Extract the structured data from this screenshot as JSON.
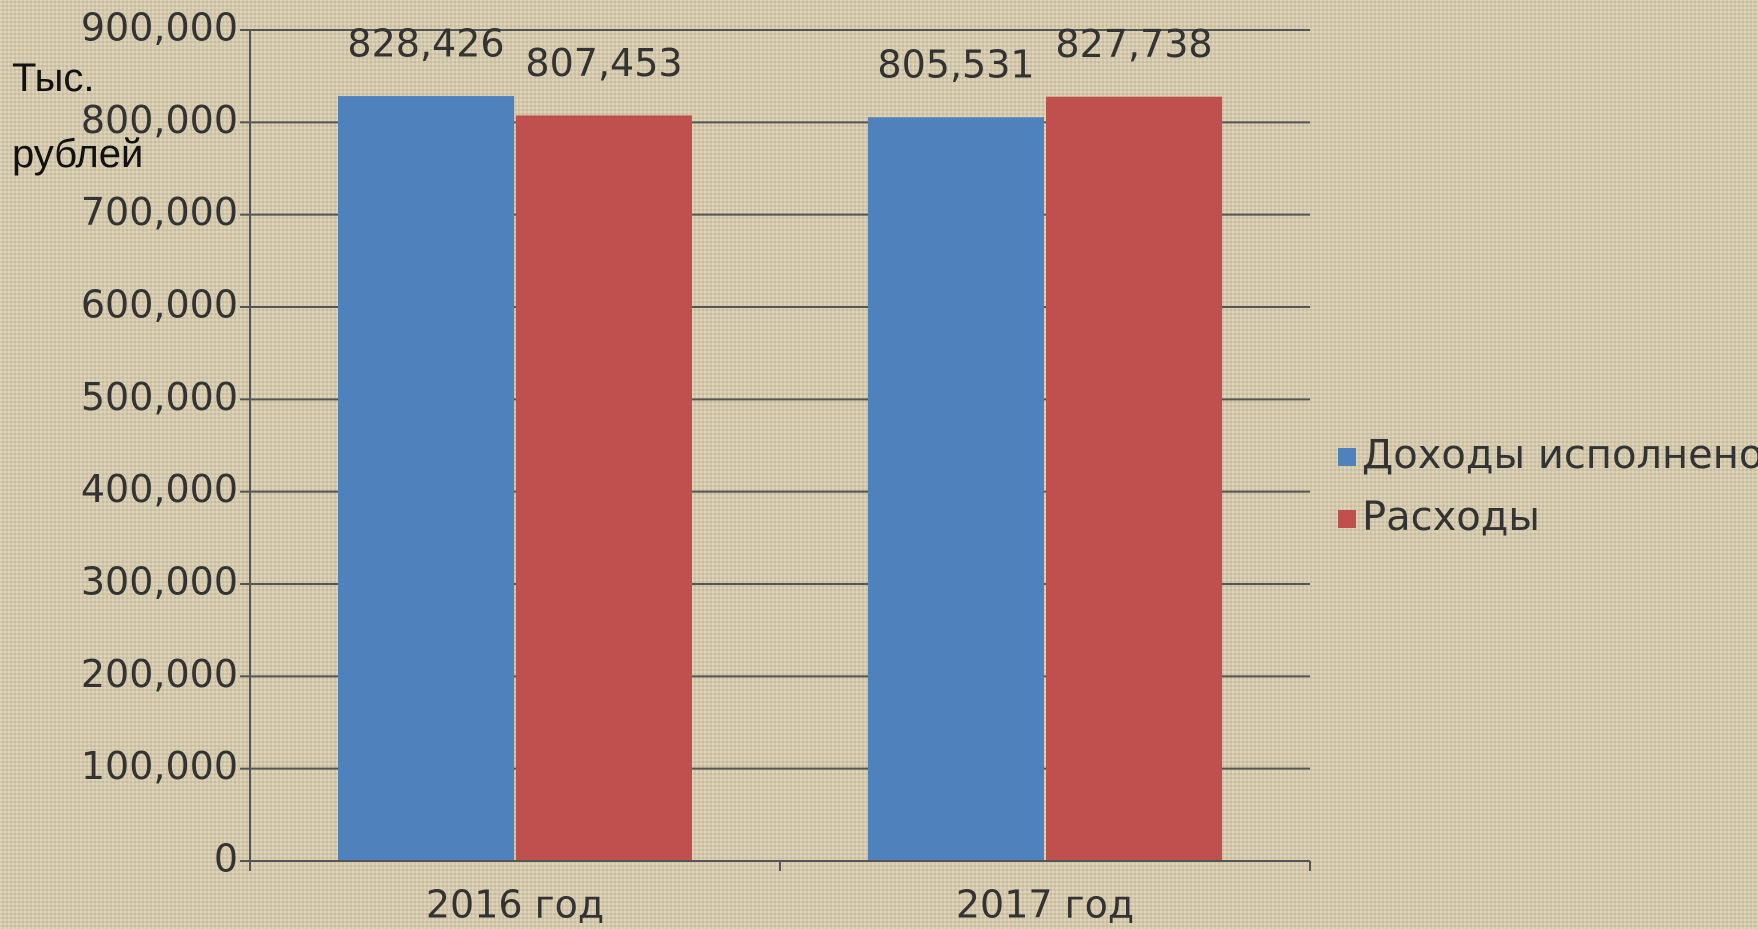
{
  "chart_data": {
    "type": "bar",
    "y_label": "Тыс. рублей",
    "categories": [
      "2016 год",
      "2017 год"
    ],
    "series": [
      {
        "name": "Доходы исполнено",
        "color": "#4f81bd",
        "values": [
          828426,
          805531
        ],
        "value_labels": [
          "828,426",
          "805,531"
        ]
      },
      {
        "name": "Расходы",
        "color": "#c0504d",
        "values": [
          807453,
          827738
        ],
        "value_labels": [
          "807,453",
          "827,738"
        ]
      }
    ],
    "ylim": [
      0,
      900000
    ],
    "yticks": [
      0,
      {
        "value": 100000,
        "label": "100,000"
      },
      {
        "value": 200000,
        "label": "200,000"
      },
      {
        "value": 300000,
        "label": "300,000"
      },
      {
        "value": 400000,
        "label": "400,000"
      },
      {
        "value": 500000,
        "label": "500,000"
      },
      {
        "value": 600000,
        "label": "600,000"
      },
      {
        "value": 700000,
        "label": "700,000"
      },
      {
        "value": 800000,
        "label": "800,000"
      },
      {
        "value": 900000,
        "label": "900,000"
      }
    ],
    "grid": true,
    "legend": "right"
  }
}
